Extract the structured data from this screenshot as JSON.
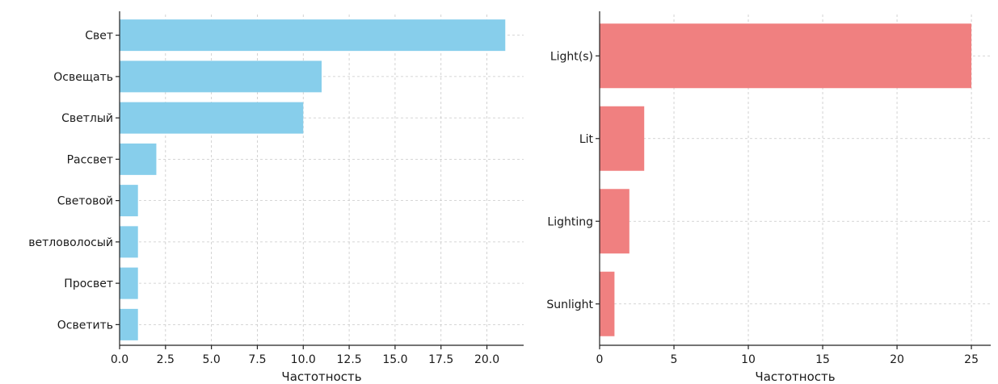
{
  "chart_data": [
    {
      "type": "bar",
      "orientation": "horizontal",
      "categories": [
        "Свет",
        "Освещать",
        "Светлый",
        "Рассвет",
        "Световой",
        "ветловолосый",
        "Просвет",
        "Осветить"
      ],
      "values": [
        21,
        11,
        10,
        2,
        1,
        1,
        1,
        1
      ],
      "xlabel": "Частотность",
      "xlim": [
        0,
        22
      ],
      "xticks": [
        0,
        2.5,
        5,
        7.5,
        10,
        12.5,
        15,
        17.5,
        20
      ],
      "xtick_labels": [
        "0.0",
        "2.5",
        "5.0",
        "7.5",
        "10.0",
        "12.5",
        "15.0",
        "17.5",
        "20.0"
      ],
      "grid": true,
      "color": "#87ceeb"
    },
    {
      "type": "bar",
      "orientation": "horizontal",
      "categories": [
        "Light(s)",
        "Lit",
        "Lighting",
        "Sunlight"
      ],
      "values": [
        25,
        3,
        2,
        1
      ],
      "xlabel": "Частотность",
      "xlim": [
        0,
        26.3
      ],
      "xticks": [
        0,
        5,
        10,
        15,
        20,
        25
      ],
      "xtick_labels": [
        "0",
        "5",
        "10",
        "15",
        "20",
        "25"
      ],
      "grid": true,
      "color": "#f08080"
    }
  ]
}
